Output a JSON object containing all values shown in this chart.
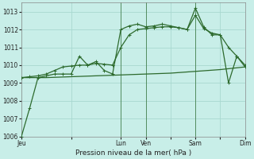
{
  "bg_color": "#c8eee8",
  "grid_color": "#a8d8d0",
  "line_color": "#2d6a2d",
  "xlabel": "Pression niveau de la mer( hPa )",
  "ylim": [
    1006,
    1013.5
  ],
  "yticks": [
    1006,
    1007,
    1008,
    1009,
    1010,
    1011,
    1012,
    1013
  ],
  "xtick_labels": [
    "Jeu",
    "",
    "Lun",
    "Ven",
    "",
    "Sam",
    "",
    "Dim"
  ],
  "xtick_positions": [
    0,
    6,
    12,
    15,
    18,
    21,
    24,
    27
  ],
  "vlines_dark": [
    12,
    15,
    21,
    27
  ],
  "series1_x": [
    0,
    1,
    2,
    3,
    4,
    5,
    6,
    7,
    8,
    9,
    10,
    11,
    12,
    13,
    14,
    15,
    16,
    17,
    18,
    19,
    20,
    21,
    22,
    23,
    24,
    25,
    26,
    27
  ],
  "series1_y": [
    1006.0,
    1007.6,
    1009.3,
    1009.4,
    1009.5,
    1009.5,
    1009.5,
    1010.5,
    1010.0,
    1010.2,
    1009.7,
    1009.5,
    1012.0,
    1012.2,
    1012.3,
    1012.15,
    1012.2,
    1012.3,
    1012.2,
    1012.1,
    1012.0,
    1013.2,
    1012.15,
    1011.7,
    1011.7,
    1009.0,
    1010.5,
    1010.0
  ],
  "series2_x": [
    0,
    3,
    6,
    9,
    12,
    15,
    18,
    21,
    24,
    27
  ],
  "series2_y": [
    1009.3,
    1009.3,
    1009.35,
    1009.4,
    1009.45,
    1009.5,
    1009.55,
    1009.65,
    1009.75,
    1009.9
  ],
  "series3_x": [
    0,
    1,
    2,
    3,
    4,
    5,
    6,
    7,
    8,
    9,
    10,
    11,
    12,
    13,
    14,
    15,
    16,
    17,
    18,
    19,
    20,
    21,
    22,
    23,
    24,
    25,
    26,
    27
  ],
  "series3_y": [
    1009.3,
    1009.35,
    1009.4,
    1009.5,
    1009.7,
    1009.9,
    1009.95,
    1010.0,
    1010.0,
    1010.1,
    1010.05,
    1010.0,
    1011.0,
    1011.7,
    1012.0,
    1012.05,
    1012.1,
    1012.15,
    1012.15,
    1012.1,
    1012.0,
    1012.8,
    1012.05,
    1011.8,
    1011.7,
    1011.0,
    1010.5,
    1009.9
  ]
}
